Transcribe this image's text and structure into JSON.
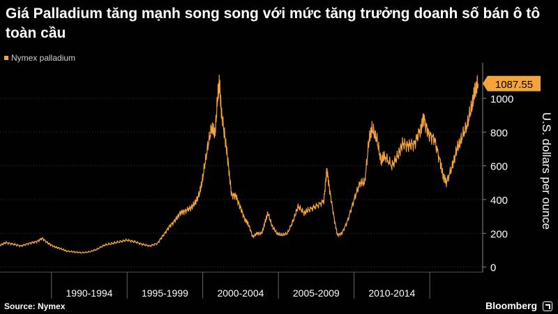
{
  "title": "Giá Palladium tăng mạnh song song với mức tăng trưởng doanh số bán ô tô toàn cầu",
  "source": "Source: Nymex",
  "brand": "Bloomberg",
  "colors": {
    "series": "#f5a33b",
    "background": "#000000",
    "grid": "#3a3a3a",
    "text": "#ffffff"
  },
  "chart_data": {
    "type": "line",
    "title": "Giá Palladium tăng mạnh song song với mức tăng trưởng doanh số bán ô tô toàn cầu",
    "ylabel": "U.S. dollars per ounce",
    "xlabel": "",
    "ylim": [
      -30,
      1190
    ],
    "xlim": [
      1986.6,
      2018.5
    ],
    "yticks": [
      0,
      200,
      400,
      600,
      800,
      1000
    ],
    "ytick_labels": [
      "0",
      "200",
      "400",
      "600",
      "800",
      "1000"
    ],
    "x_periods": [
      {
        "label": "1990-1994",
        "start": 1990,
        "end": 1995
      },
      {
        "label": "1995-1999",
        "start": 1995,
        "end": 2000
      },
      {
        "label": "2000-2004",
        "start": 2000,
        "end": 2005
      },
      {
        "label": "2005-2009",
        "start": 2005,
        "end": 2010
      },
      {
        "label": "2010-2014",
        "start": 2010,
        "end": 2015
      }
    ],
    "grid": true,
    "last_value_label": "1087.55",
    "series": [
      {
        "name": "Nymex palladium",
        "color": "#f5a33b",
        "points": [
          [
            1986.6,
            130
          ],
          [
            1987.0,
            145
          ],
          [
            1987.5,
            135
          ],
          [
            1988.0,
            125
          ],
          [
            1988.5,
            140
          ],
          [
            1989.0,
            150
          ],
          [
            1989.4,
            170
          ],
          [
            1989.8,
            140
          ],
          [
            1990.2,
            120
          ],
          [
            1990.6,
            110
          ],
          [
            1991.0,
            95
          ],
          [
            1991.5,
            90
          ],
          [
            1992.0,
            85
          ],
          [
            1992.5,
            90
          ],
          [
            1993.0,
            105
          ],
          [
            1993.5,
            130
          ],
          [
            1994.0,
            140
          ],
          [
            1994.5,
            150
          ],
          [
            1995.0,
            160
          ],
          [
            1995.5,
            150
          ],
          [
            1996.0,
            135
          ],
          [
            1996.5,
            125
          ],
          [
            1997.0,
            140
          ],
          [
            1997.4,
            190
          ],
          [
            1997.8,
            240
          ],
          [
            1998.2,
            280
          ],
          [
            1998.5,
            320
          ],
          [
            1998.8,
            330
          ],
          [
            1999.2,
            350
          ],
          [
            1999.5,
            380
          ],
          [
            1999.8,
            440
          ],
          [
            2000.0,
            530
          ],
          [
            2000.3,
            700
          ],
          [
            2000.6,
            830
          ],
          [
            2000.8,
            780
          ],
          [
            2001.0,
            1020
          ],
          [
            2001.1,
            1090
          ],
          [
            2001.25,
            900
          ],
          [
            2001.5,
            750
          ],
          [
            2001.7,
            600
          ],
          [
            2001.9,
            430
          ],
          [
            2002.2,
            420
          ],
          [
            2002.5,
            350
          ],
          [
            2002.8,
            280
          ],
          [
            2003.0,
            260
          ],
          [
            2003.3,
            180
          ],
          [
            2003.6,
            200
          ],
          [
            2003.9,
            200
          ],
          [
            2004.1,
            260
          ],
          [
            2004.3,
            320
          ],
          [
            2004.6,
            240
          ],
          [
            2004.9,
            200
          ],
          [
            2005.2,
            190
          ],
          [
            2005.6,
            200
          ],
          [
            2006.0,
            280
          ],
          [
            2006.3,
            360
          ],
          [
            2006.7,
            320
          ],
          [
            2007.0,
            340
          ],
          [
            2007.5,
            360
          ],
          [
            2008.0,
            390
          ],
          [
            2008.2,
            580
          ],
          [
            2008.4,
            450
          ],
          [
            2008.7,
            280
          ],
          [
            2008.9,
            190
          ],
          [
            2009.2,
            200
          ],
          [
            2009.6,
            280
          ],
          [
            2010.0,
            400
          ],
          [
            2010.4,
            500
          ],
          [
            2010.7,
            500
          ],
          [
            2011.0,
            760
          ],
          [
            2011.2,
            820
          ],
          [
            2011.5,
            760
          ],
          [
            2011.8,
            620
          ],
          [
            2012.0,
            660
          ],
          [
            2012.5,
            600
          ],
          [
            2012.9,
            660
          ],
          [
            2013.2,
            730
          ],
          [
            2013.6,
            720
          ],
          [
            2014.0,
            730
          ],
          [
            2014.4,
            820
          ],
          [
            2014.6,
            890
          ],
          [
            2014.9,
            790
          ],
          [
            2015.3,
            760
          ],
          [
            2015.7,
            620
          ],
          [
            2015.9,
            540
          ],
          [
            2016.1,
            500
          ],
          [
            2016.5,
            600
          ],
          [
            2016.8,
            700
          ],
          [
            2017.1,
            760
          ],
          [
            2017.5,
            850
          ],
          [
            2017.8,
            960
          ],
          [
            2018.0,
            1040
          ],
          [
            2018.2,
            1087.55
          ]
        ]
      }
    ]
  }
}
